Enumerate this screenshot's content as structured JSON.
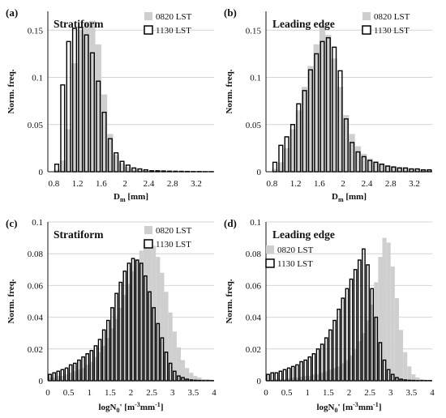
{
  "chart_data": [
    {
      "type": "bar",
      "panel_label": "(a)",
      "title": "Stratiform",
      "ylabel": "Norm. freq.",
      "xlabel_main": "D",
      "xlabel_sub": "m",
      "xlabel_unit": " [mm]",
      "xlim": [
        0.7,
        3.5
      ],
      "ylim": [
        0,
        0.17
      ],
      "xticks": [
        "0.8",
        "1.2",
        "1.6",
        "2",
        "2.4",
        "2.8",
        "3.2"
      ],
      "xtick_values": [
        0.8,
        1.2,
        1.6,
        2.0,
        2.4,
        2.8,
        3.2
      ],
      "yticks": [
        "0",
        "0.05",
        "0.1",
        "0.15"
      ],
      "ytick_values": [
        0,
        0.05,
        0.1,
        0.15
      ],
      "grid": true,
      "legend_position": "top-right",
      "bin_start": 0.8,
      "bin_width": 0.1,
      "series": [
        {
          "name": "0820 LST",
          "style": "gray-fill",
          "values": [
            0.002,
            0.012,
            0.045,
            0.115,
            0.15,
            0.159,
            0.16,
            0.135,
            0.082,
            0.04,
            0.018,
            0.009,
            0.005,
            0.003,
            0.002,
            0.001,
            0.001,
            0.0006,
            0.0005,
            0.0004,
            0.0003,
            0.0002,
            0.0002,
            0.0001,
            0.0001,
            0.0001,
            0.0001
          ]
        },
        {
          "name": "1130 LST",
          "style": "outline",
          "values": [
            0.008,
            0.092,
            0.138,
            0.152,
            0.153,
            0.145,
            0.126,
            0.096,
            0.063,
            0.035,
            0.02,
            0.011,
            0.007,
            0.004,
            0.003,
            0.002,
            0.001,
            0.001,
            0.0008,
            0.0006,
            0.0005,
            0.0004,
            0.0003,
            0.0002,
            0.0002,
            0.0001,
            0.0001
          ]
        }
      ]
    },
    {
      "type": "bar",
      "panel_label": "(b)",
      "title": "Leading edge",
      "ylabel": "Norm. freq.",
      "xlabel_main": "D",
      "xlabel_sub": "m",
      "xlabel_unit": " [mm]",
      "xlim": [
        0.7,
        3.5
      ],
      "ylim": [
        0,
        0.17
      ],
      "xticks": [
        "0.8",
        "1.2",
        "1.6",
        "2",
        "2.4",
        "2.8",
        "3.2"
      ],
      "xtick_values": [
        0.8,
        1.2,
        1.6,
        2.0,
        2.4,
        2.8,
        3.2
      ],
      "yticks": [
        "0",
        "0.05",
        "0.1",
        "0.15"
      ],
      "ytick_values": [
        0,
        0.05,
        0.1,
        0.15
      ],
      "grid": true,
      "legend_position": "top-right",
      "bin_start": 0.8,
      "bin_width": 0.1,
      "series": [
        {
          "name": "0820 LST",
          "style": "gray-fill",
          "values": [
            0.003,
            0.01,
            0.025,
            0.045,
            0.065,
            0.09,
            0.112,
            0.135,
            0.155,
            0.145,
            0.12,
            0.09,
            0.06,
            0.04,
            0.027,
            0.019,
            0.014,
            0.011,
            0.009,
            0.007,
            0.006,
            0.005,
            0.004,
            0.003,
            0.003,
            0.002,
            0.002
          ]
        },
        {
          "name": "1130 LST",
          "style": "outline",
          "values": [
            0.01,
            0.028,
            0.037,
            0.05,
            0.072,
            0.086,
            0.108,
            0.125,
            0.138,
            0.142,
            0.132,
            0.107,
            0.056,
            0.031,
            0.021,
            0.016,
            0.012,
            0.01,
            0.008,
            0.006,
            0.005,
            0.004,
            0.004,
            0.003,
            0.003,
            0.002,
            0.002
          ]
        }
      ]
    },
    {
      "type": "bar",
      "panel_label": "(c)",
      "title": "Stratiform",
      "ylabel": "Norm. freq.",
      "xlabel_main": "logN",
      "xlabel_sub": "0",
      "xlabel_unit": "' [m",
      "xlabel_sup1": "-3",
      "xlabel_unit2": "mm",
      "xlabel_sup2": "-1",
      "xlabel_unit3": "]",
      "xlim": [
        0,
        4
      ],
      "ylim": [
        0,
        0.1
      ],
      "xticks": [
        "0",
        "0.5",
        "1",
        "1.5",
        "2",
        "2.5",
        "3",
        "3.5",
        "4"
      ],
      "xtick_values": [
        0,
        0.5,
        1,
        1.5,
        2,
        2.5,
        3,
        3.5,
        4
      ],
      "yticks": [
        "0",
        "0.02",
        "0.04",
        "0.06",
        "0.08",
        "0.1"
      ],
      "ytick_values": [
        0,
        0.02,
        0.04,
        0.06,
        0.08,
        0.1
      ],
      "grid": true,
      "legend_position": "top-right",
      "bin_start": 0,
      "bin_width": 0.1,
      "series": [
        {
          "name": "0820 LST",
          "style": "gray-fill",
          "values": [
            0.002,
            0.002,
            0.003,
            0.003,
            0.004,
            0.005,
            0.006,
            0.007,
            0.008,
            0.01,
            0.012,
            0.015,
            0.018,
            0.022,
            0.027,
            0.033,
            0.039,
            0.046,
            0.054,
            0.061,
            0.069,
            0.076,
            0.082,
            0.086,
            0.088,
            0.085,
            0.078,
            0.068,
            0.056,
            0.043,
            0.031,
            0.021,
            0.013,
            0.008,
            0.005,
            0.003,
            0.002,
            0.001,
            0.001,
            0.0005
          ]
        },
        {
          "name": "1130 LST",
          "style": "outline",
          "values": [
            0.004,
            0.005,
            0.006,
            0.007,
            0.008,
            0.01,
            0.011,
            0.013,
            0.015,
            0.017,
            0.019,
            0.022,
            0.026,
            0.032,
            0.038,
            0.046,
            0.055,
            0.062,
            0.069,
            0.074,
            0.077,
            0.076,
            0.074,
            0.066,
            0.056,
            0.046,
            0.036,
            0.027,
            0.018,
            0.011,
            0.006,
            0.003,
            0.002,
            0.001,
            0.0005,
            0.0003,
            0.0002,
            0.0001,
            0.0001,
            0.0001
          ]
        }
      ]
    },
    {
      "type": "bar",
      "panel_label": "(d)",
      "title": "Leading edge",
      "ylabel": "Norm. freq.",
      "xlabel_main": "logN",
      "xlabel_sub": "0",
      "xlabel_unit": "' [m",
      "xlabel_sup1": "-3",
      "xlabel_unit2": "mm",
      "xlabel_sup2": "-1",
      "xlabel_unit3": "]",
      "xlim": [
        0,
        4
      ],
      "ylim": [
        0,
        0.1
      ],
      "xticks": [
        "0",
        "0.5",
        "1",
        "1.5",
        "2",
        "2.5",
        "3",
        "3.5",
        "4"
      ],
      "xtick_values": [
        0,
        0.5,
        1,
        1.5,
        2,
        2.5,
        3,
        3.5,
        4
      ],
      "yticks": [
        "0",
        "0.02",
        "0.04",
        "0.06",
        "0.08",
        "0.1"
      ],
      "ytick_values": [
        0,
        0.02,
        0.04,
        0.06,
        0.08,
        0.1
      ],
      "grid": true,
      "legend_position": "top-left",
      "bin_start": 0,
      "bin_width": 0.1,
      "series": [
        {
          "name": "0820 LST",
          "style": "gray-fill",
          "values": [
            0.0005,
            0.0005,
            0.001,
            0.001,
            0.001,
            0.0015,
            0.002,
            0.002,
            0.0025,
            0.003,
            0.003,
            0.004,
            0.004,
            0.005,
            0.006,
            0.007,
            0.008,
            0.009,
            0.011,
            0.013,
            0.016,
            0.02,
            0.025,
            0.03,
            0.038,
            0.048,
            0.062,
            0.078,
            0.09,
            0.087,
            0.072,
            0.052,
            0.032,
            0.018,
            0.009,
            0.004,
            0.002,
            0.001,
            0.0005,
            0.0003
          ]
        },
        {
          "name": "1130 LST",
          "style": "outline",
          "values": [
            0.004,
            0.005,
            0.005,
            0.006,
            0.007,
            0.008,
            0.009,
            0.01,
            0.012,
            0.013,
            0.015,
            0.017,
            0.02,
            0.023,
            0.027,
            0.032,
            0.038,
            0.045,
            0.052,
            0.058,
            0.064,
            0.07,
            0.076,
            0.083,
            0.073,
            0.058,
            0.04,
            0.024,
            0.013,
            0.007,
            0.004,
            0.002,
            0.001,
            0.0005,
            0.0003,
            0.0002,
            0.0001,
            0.0001,
            0.0001,
            0.0001
          ]
        }
      ]
    }
  ]
}
